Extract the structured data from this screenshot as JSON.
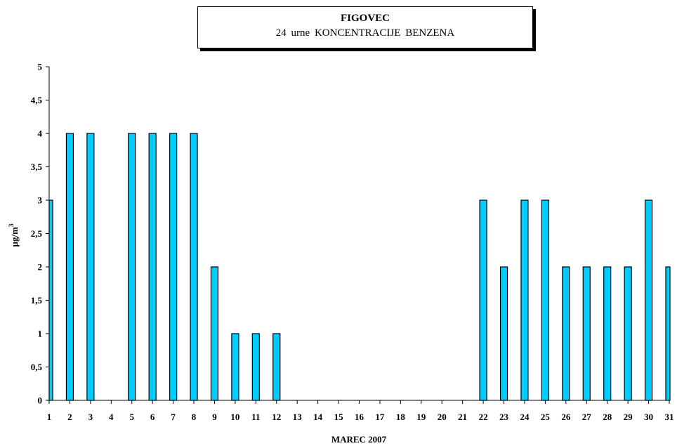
{
  "chart_data": {
    "type": "bar",
    "title": "FIGOVEC",
    "subtitle": "24 urne KONCENTRACIJE BENZENA",
    "xlabel": "MAREC 2007",
    "ylabel": "µg/m3",
    "ylabel_main": "µg/m",
    "ylabel_sup": "3",
    "categories": [
      "1",
      "2",
      "3",
      "4",
      "5",
      "6",
      "7",
      "8",
      "9",
      "10",
      "11",
      "12",
      "13",
      "14",
      "15",
      "16",
      "17",
      "18",
      "19",
      "20",
      "21",
      "22",
      "23",
      "24",
      "25",
      "26",
      "27",
      "28",
      "29",
      "30",
      "31"
    ],
    "values": [
      3,
      4,
      4,
      null,
      4,
      4,
      4,
      4,
      2,
      1,
      1,
      1,
      null,
      null,
      null,
      null,
      null,
      null,
      null,
      null,
      null,
      3,
      2,
      3,
      3,
      2,
      2,
      2,
      2,
      3,
      2
    ],
    "ylim": [
      0,
      5
    ],
    "yticks": [
      "0",
      "0,5",
      "1",
      "1,5",
      "2",
      "2,5",
      "3",
      "3,5",
      "4",
      "4,5",
      "5"
    ],
    "bar_color": "#00ccff",
    "grid": false,
    "legend": "none"
  }
}
